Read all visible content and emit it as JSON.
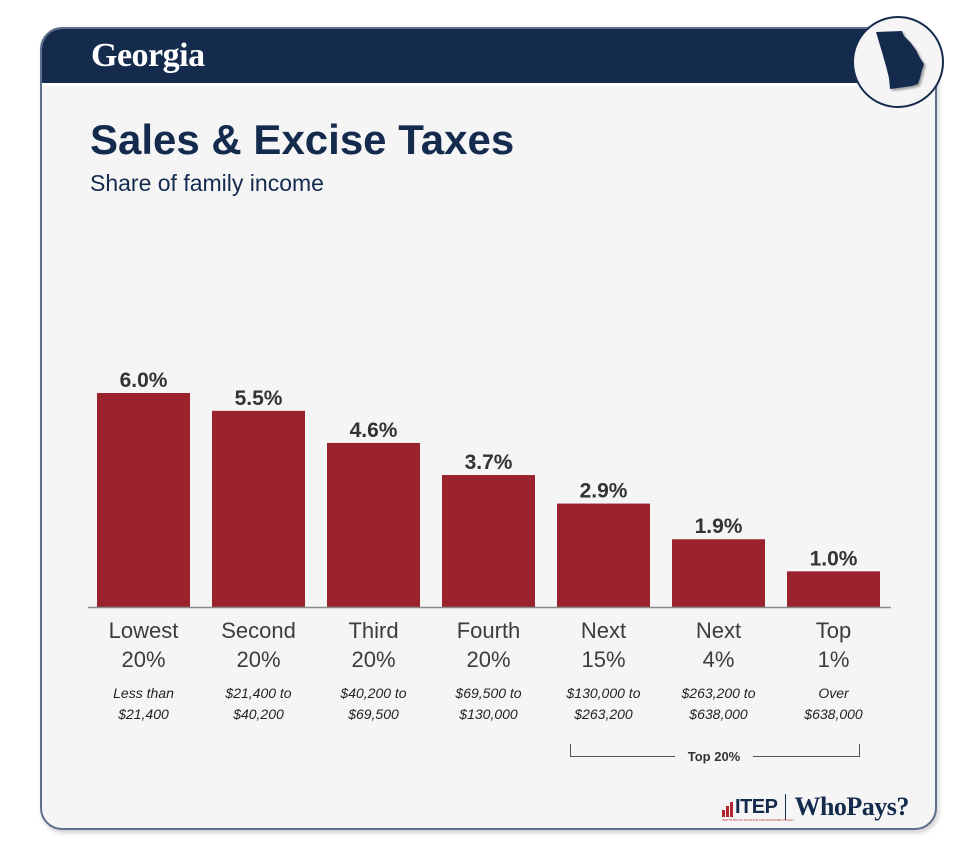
{
  "header": {
    "state": "Georgia",
    "state_icon": "georgia-state-outline-icon"
  },
  "title": "Sales & Excise Taxes",
  "subtitle": "Share of family income",
  "colors": {
    "navy": "#142b4e",
    "bar": "#9a232d",
    "background": "#f5f5f5"
  },
  "chart_data": {
    "type": "bar",
    "title": "Sales & Excise Taxes",
    "subtitle": "Share of family income",
    "xlabel": "",
    "ylabel": "",
    "ylim": [
      0,
      6.0
    ],
    "grid": false,
    "legend": "none",
    "categories": [
      {
        "line1": "Lowest",
        "line2": "20%",
        "range1": "Less than",
        "range2": "$21,400"
      },
      {
        "line1": "Second",
        "line2": "20%",
        "range1": "$21,400 to",
        "range2": "$40,200"
      },
      {
        "line1": "Third",
        "line2": "20%",
        "range1": "$40,200 to",
        "range2": "$69,500"
      },
      {
        "line1": "Fourth",
        "line2": "20%",
        "range1": "$69,500 to",
        "range2": "$130,000"
      },
      {
        "line1": "Next",
        "line2": "15%",
        "range1": "$130,000 to",
        "range2": "$263,200"
      },
      {
        "line1": "Next",
        "line2": "4%",
        "range1": "$263,200 to",
        "range2": "$638,000"
      },
      {
        "line1": "Top",
        "line2": "1%",
        "range1": "Over",
        "range2": "$638,000"
      }
    ],
    "values": [
      6.0,
      5.5,
      4.6,
      3.7,
      2.9,
      1.9,
      1.0
    ],
    "value_labels": [
      "6.0%",
      "5.5%",
      "4.6%",
      "3.7%",
      "2.9%",
      "1.9%",
      "1.0%"
    ],
    "annotations": [
      {
        "text": "Top 20%",
        "spans": [
          "Next 15%",
          "Next 4%",
          "Top 1%"
        ]
      }
    ]
  },
  "footer": {
    "itep": "ITEP",
    "itep_sub": "INSTITUTE ON TAXATION AND ECONOMIC POLICY",
    "whopays": "WhoPays?"
  }
}
